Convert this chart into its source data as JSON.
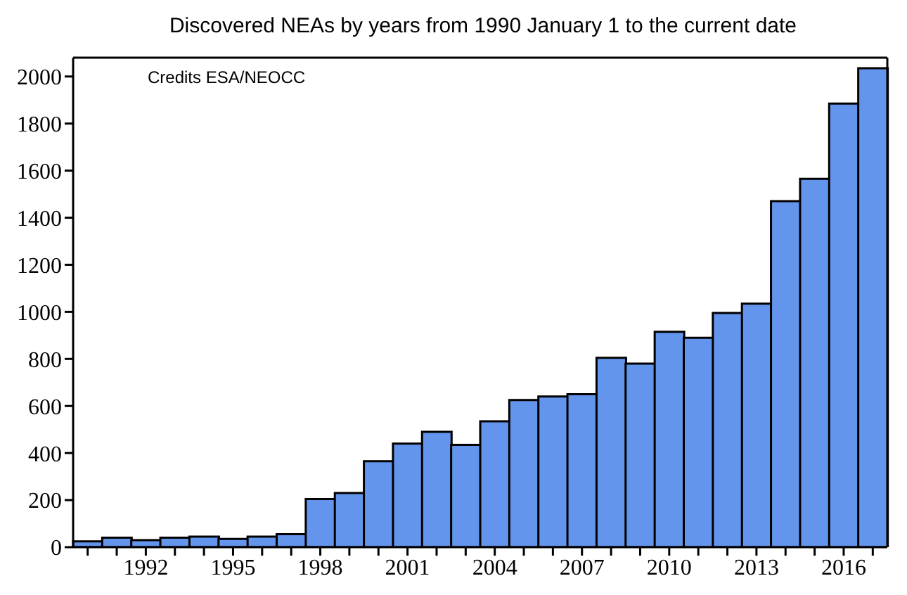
{
  "chart_data": {
    "type": "bar",
    "title": "Discovered NEAs by years from 1990 January 1 to the current date",
    "annotations": [
      "Credits ESA/NEOCC"
    ],
    "categories": [
      null,
      null,
      "1992",
      null,
      null,
      "1995",
      null,
      null,
      "1998",
      null,
      null,
      "2001",
      null,
      null,
      "2004",
      null,
      null,
      "2007",
      null,
      null,
      "2010",
      null,
      null,
      "2013",
      null,
      null,
      "2016",
      null
    ],
    "values": [
      25,
      40,
      30,
      40,
      45,
      35,
      45,
      55,
      205,
      230,
      365,
      440,
      490,
      435,
      535,
      625,
      640,
      650,
      805,
      780,
      915,
      890,
      995,
      1035,
      1470,
      1565,
      1885,
      2035
    ],
    "color": "#6495ed",
    "ylim": [
      0,
      2080
    ],
    "yticks": [
      0,
      200,
      400,
      600,
      800,
      1000,
      1200,
      1400,
      1600,
      1800,
      2000
    ]
  }
}
